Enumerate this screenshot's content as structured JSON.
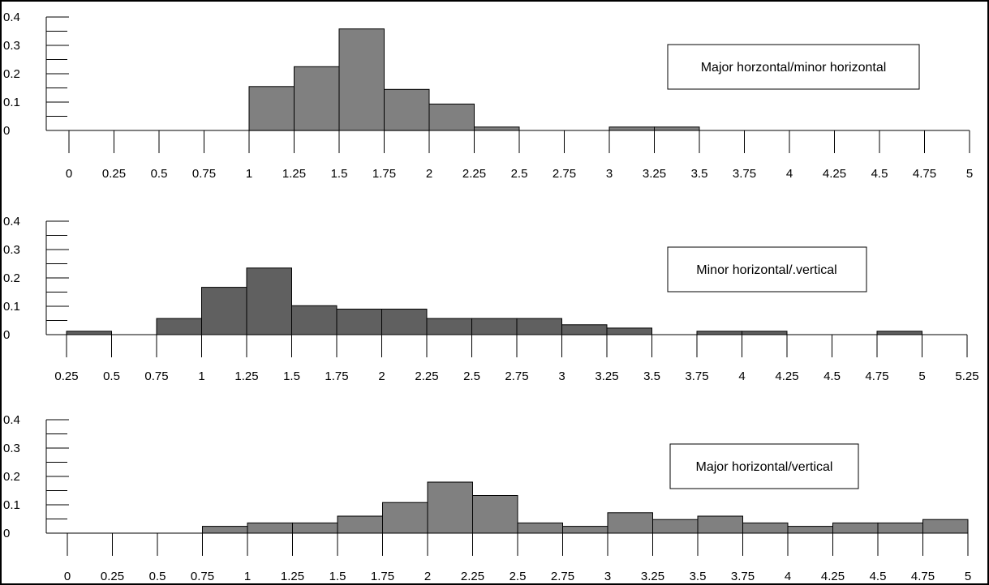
{
  "chart_data": [
    {
      "type": "bar",
      "legend": "Major horzontal/minor horizontal",
      "bar_color": "#808080",
      "ylim": [
        0,
        0.4
      ],
      "y_ticks": [
        "0",
        "0.1",
        "0.2",
        "0.3",
        "0.4"
      ],
      "x_ticks": [
        "0",
        "0.25",
        "0.5",
        "0.75",
        "1",
        "1.25",
        "1.5",
        "1.75",
        "2",
        "2.25",
        "2.5",
        "2.75",
        "3",
        "3.25",
        "3.5",
        "3.75",
        "4",
        "4.25",
        "4.5",
        "4.75",
        "5"
      ],
      "bins": [
        {
          "start": 1.0,
          "end": 1.25,
          "value": 0.155
        },
        {
          "start": 1.25,
          "end": 1.5,
          "value": 0.225
        },
        {
          "start": 1.5,
          "end": 1.75,
          "value": 0.358
        },
        {
          "start": 1.75,
          "end": 2.0,
          "value": 0.145
        },
        {
          "start": 2.0,
          "end": 2.25,
          "value": 0.093
        },
        {
          "start": 2.25,
          "end": 2.5,
          "value": 0.012
        },
        {
          "start": 3.0,
          "end": 3.25,
          "value": 0.012
        },
        {
          "start": 3.25,
          "end": 3.5,
          "value": 0.012
        }
      ]
    },
    {
      "type": "bar",
      "legend": "Minor horizontal/.vertical",
      "bar_color": "#606060",
      "ylim": [
        0,
        0.4
      ],
      "y_ticks": [
        "0",
        "0.1",
        "0.2",
        "0.3",
        "0.4"
      ],
      "x_ticks": [
        "0.25",
        "0.5",
        "0.75",
        "1",
        "1.25",
        "1.5",
        "1.75",
        "2",
        "2.25",
        "2.5",
        "2.75",
        "3",
        "3.25",
        "3.5",
        "3.75",
        "4",
        "4.25",
        "4.5",
        "4.75",
        "5",
        "5.25"
      ],
      "bins": [
        {
          "start": 0.25,
          "end": 0.5,
          "value": 0.012
        },
        {
          "start": 0.75,
          "end": 1.0,
          "value": 0.057
        },
        {
          "start": 1.0,
          "end": 1.25,
          "value": 0.167
        },
        {
          "start": 1.25,
          "end": 1.5,
          "value": 0.235
        },
        {
          "start": 1.5,
          "end": 1.75,
          "value": 0.102
        },
        {
          "start": 1.75,
          "end": 2.0,
          "value": 0.09
        },
        {
          "start": 2.0,
          "end": 2.25,
          "value": 0.09
        },
        {
          "start": 2.25,
          "end": 2.5,
          "value": 0.057
        },
        {
          "start": 2.5,
          "end": 2.75,
          "value": 0.057
        },
        {
          "start": 2.75,
          "end": 3.0,
          "value": 0.057
        },
        {
          "start": 3.0,
          "end": 3.25,
          "value": 0.035
        },
        {
          "start": 3.25,
          "end": 3.5,
          "value": 0.023
        },
        {
          "start": 3.75,
          "end": 4.0,
          "value": 0.012
        },
        {
          "start": 4.0,
          "end": 4.25,
          "value": 0.012
        },
        {
          "start": 4.75,
          "end": 5.0,
          "value": 0.012
        }
      ]
    },
    {
      "type": "bar",
      "legend": "Major horizontal/vertical",
      "bar_color": "#808080",
      "ylim": [
        0,
        0.4
      ],
      "y_ticks": [
        "0",
        "0.1",
        "0.2",
        "0.3",
        "0.4"
      ],
      "x_ticks": [
        "0",
        "0.25",
        "0.5",
        "0.75",
        "1",
        "1.25",
        "1.5",
        "1.75",
        "2",
        "2.25",
        "2.5",
        "2.75",
        "3",
        "3.25",
        "3.5",
        "3.75",
        "4",
        "4.25",
        "4.5",
        "4.75",
        "5"
      ],
      "bins": [
        {
          "start": 0.75,
          "end": 1.0,
          "value": 0.024
        },
        {
          "start": 1.0,
          "end": 1.25,
          "value": 0.036
        },
        {
          "start": 1.25,
          "end": 1.5,
          "value": 0.036
        },
        {
          "start": 1.5,
          "end": 1.75,
          "value": 0.06
        },
        {
          "start": 1.75,
          "end": 2.0,
          "value": 0.108
        },
        {
          "start": 2.0,
          "end": 2.25,
          "value": 0.18
        },
        {
          "start": 2.25,
          "end": 2.5,
          "value": 0.133
        },
        {
          "start": 2.5,
          "end": 2.75,
          "value": 0.036
        },
        {
          "start": 2.75,
          "end": 3.0,
          "value": 0.024
        },
        {
          "start": 3.0,
          "end": 3.25,
          "value": 0.072
        },
        {
          "start": 3.25,
          "end": 3.5,
          "value": 0.048
        },
        {
          "start": 3.5,
          "end": 3.75,
          "value": 0.06
        },
        {
          "start": 3.75,
          "end": 4.0,
          "value": 0.036
        },
        {
          "start": 4.0,
          "end": 4.25,
          "value": 0.024
        },
        {
          "start": 4.25,
          "end": 4.5,
          "value": 0.036
        },
        {
          "start": 4.5,
          "end": 4.75,
          "value": 0.036
        },
        {
          "start": 4.75,
          "end": 5.0,
          "value": 0.048
        }
      ]
    }
  ]
}
